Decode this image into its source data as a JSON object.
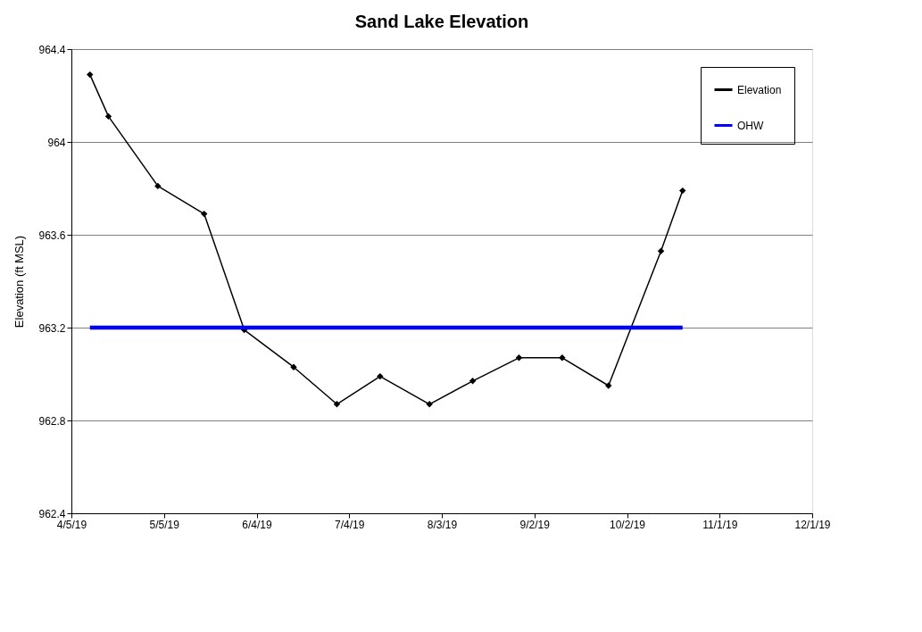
{
  "chart_data": {
    "type": "line",
    "title": "Sand Lake Elevation",
    "ylabel": "Elevation (ft MSL)",
    "series": [
      {
        "name": "Elevation",
        "color": "#000000",
        "marker": "diamond",
        "x": [
          "2019-04-11",
          "2019-04-17",
          "2019-05-03",
          "2019-05-18",
          "2019-05-31",
          "2019-06-16",
          "2019-06-30",
          "2019-07-14",
          "2019-07-30",
          "2019-08-13",
          "2019-08-28",
          "2019-09-11",
          "2019-09-26",
          "2019-10-13",
          "2019-10-20"
        ],
        "values": [
          964.29,
          964.11,
          963.81,
          963.69,
          963.19,
          963.03,
          962.87,
          962.99,
          962.87,
          962.97,
          963.07,
          963.07,
          962.95,
          963.53,
          963.79
        ]
      },
      {
        "name": "OHW",
        "color": "#0000ff",
        "marker": "none",
        "x": [
          "2019-04-11",
          "2019-10-20"
        ],
        "values": [
          963.2,
          963.2
        ]
      }
    ],
    "xlim": [
      "2019-04-05",
      "2019-12-01"
    ],
    "xticks": [
      {
        "value": "2019-04-05",
        "label": "4/5/19"
      },
      {
        "value": "2019-05-05",
        "label": "5/5/19"
      },
      {
        "value": "2019-06-04",
        "label": "6/4/19"
      },
      {
        "value": "2019-07-04",
        "label": "7/4/19"
      },
      {
        "value": "2019-08-03",
        "label": "8/3/19"
      },
      {
        "value": "2019-09-02",
        "label": "9/2/19"
      },
      {
        "value": "2019-10-02",
        "label": "10/2/19"
      },
      {
        "value": "2019-11-01",
        "label": "11/1/19"
      },
      {
        "value": "2019-12-01",
        "label": "12/1/19"
      }
    ],
    "ylim": [
      962.4,
      964.4
    ],
    "yticks": [
      962.4,
      962.8,
      963.2,
      963.6,
      964,
      964.4
    ],
    "grid": "y",
    "legend": "top right",
    "line_style": "solid"
  }
}
